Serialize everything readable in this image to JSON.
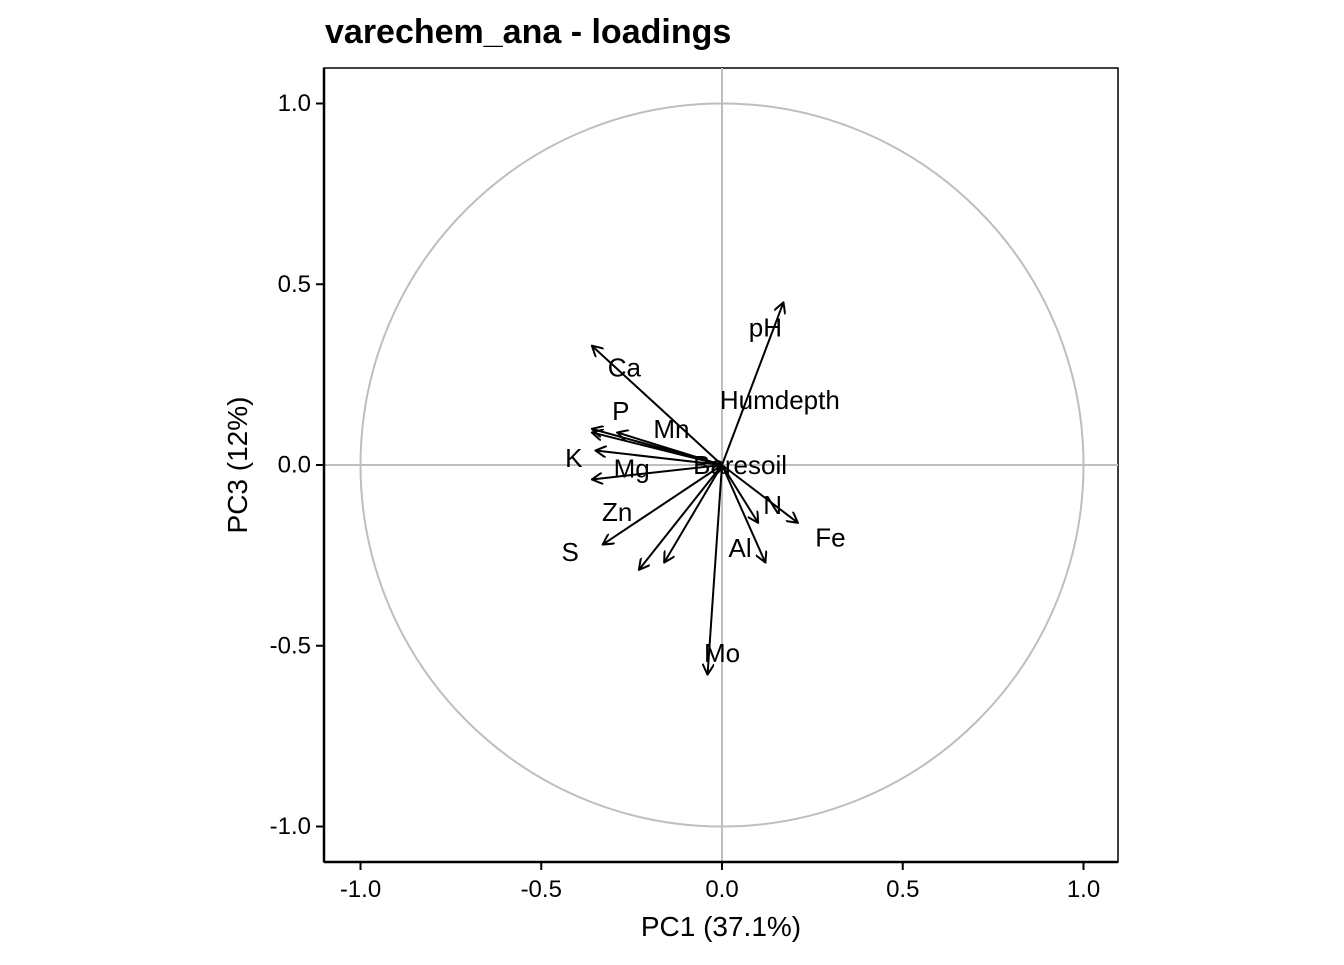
{
  "chart_data": {
    "type": "scatter",
    "subtype": "pca-loadings-biplot",
    "title": "varechem_ana - loadings",
    "xlabel": "PC1 (37.1%)",
    "ylabel": "PC3 (12%)",
    "xlim": [
      -1.1,
      1.1
    ],
    "ylim": [
      -1.1,
      1.1
    ],
    "xticks": [
      -1.0,
      -0.5,
      0.0,
      0.5,
      1.0
    ],
    "yticks": [
      -1.0,
      -0.5,
      0.0,
      0.5,
      1.0
    ],
    "xtick_labels": [
      "-1.0",
      "-0.5",
      "0.0",
      "0.5",
      "1.0"
    ],
    "ytick_labels": [
      "1.0",
      "0.5",
      "0.0",
      "-0.5",
      "-1.0"
    ],
    "unit_circle": true,
    "reference_lines": {
      "x": 0,
      "y": 0
    },
    "grid": false,
    "legend": false,
    "colors": {
      "arrow": "#000000",
      "circle": "#bebebe",
      "reference": "#bebebe",
      "frame": "#000000"
    },
    "loadings": [
      {
        "name": "N",
        "x": 0.1,
        "y": -0.16
      },
      {
        "name": "P",
        "x": -0.36,
        "y": 0.09
      },
      {
        "name": "K",
        "x": -0.35,
        "y": 0.04
      },
      {
        "name": "Ca",
        "x": -0.36,
        "y": 0.33
      },
      {
        "name": "Mg",
        "x": -0.36,
        "y": -0.04
      },
      {
        "name": "S",
        "x": -0.33,
        "y": -0.22
      },
      {
        "name": "Al",
        "x": 0.12,
        "y": -0.27
      },
      {
        "name": "Fe",
        "x": 0.21,
        "y": -0.16
      },
      {
        "name": "Mn",
        "x": -0.29,
        "y": 0.09
      },
      {
        "name": "Zn",
        "x": -0.36,
        "y": 0.1
      },
      {
        "name": "Mo",
        "x": -0.04,
        "y": -0.58
      },
      {
        "name": "Baresoil",
        "x": -0.16,
        "y": -0.27
      },
      {
        "name": "Humdepth",
        "x": -0.23,
        "y": -0.29
      },
      {
        "name": "pH",
        "x": 0.17,
        "y": 0.45
      }
    ],
    "labels": [
      {
        "text": "N",
        "x": 0.14,
        "y": -0.11
      },
      {
        "text": "P",
        "x": -0.28,
        "y": 0.15
      },
      {
        "text": "K",
        "x": -0.41,
        "y": 0.02
      },
      {
        "text": "Ca",
        "x": -0.27,
        "y": 0.27
      },
      {
        "text": "Mg",
        "x": -0.25,
        "y": -0.01
      },
      {
        "text": "S",
        "x": -0.42,
        "y": -0.24
      },
      {
        "text": "Al",
        "x": 0.05,
        "y": -0.23
      },
      {
        "text": "Fe",
        "x": 0.3,
        "y": -0.2
      },
      {
        "text": "Mn",
        "x": -0.14,
        "y": 0.1
      },
      {
        "text": "Zn",
        "x": -0.29,
        "y": -0.13
      },
      {
        "text": "Mo",
        "x": 0.0,
        "y": -0.52
      },
      {
        "text": "Baresoil",
        "x": 0.05,
        "y": 0.0
      },
      {
        "text": "Humdepth",
        "x": 0.16,
        "y": 0.18
      },
      {
        "text": "pH",
        "x": 0.12,
        "y": 0.38
      }
    ]
  }
}
